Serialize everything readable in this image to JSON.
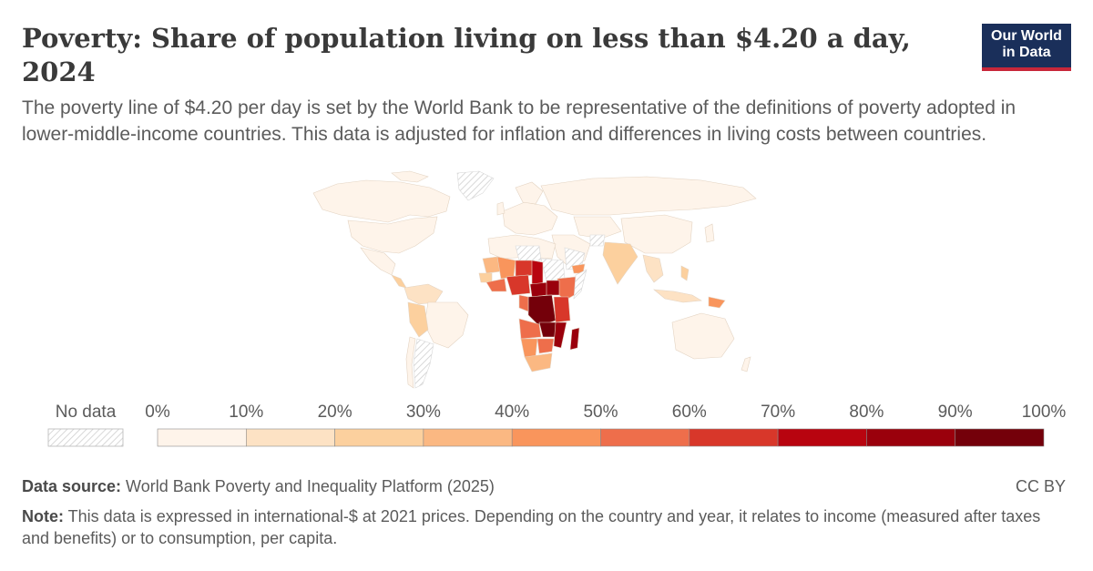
{
  "header": {
    "title": "Poverty: Share of population living on less than $4.20 a day, 2024",
    "subtitle": "The poverty line of $4.20 per day is set by the World Bank to be representative of the definitions of poverty adopted in lower-middle-income countries. This data is adjusted for inflation and differences in living costs between countries.",
    "logo_line1": "Our World",
    "logo_line2": "in Data"
  },
  "legend": {
    "no_data_label": "No data",
    "bins": [
      {
        "from": "0%",
        "color": "#fef4ea"
      },
      {
        "from": "10%",
        "color": "#fde2c4"
      },
      {
        "from": "20%",
        "color": "#fcd09e"
      },
      {
        "from": "30%",
        "color": "#fbb882"
      },
      {
        "from": "40%",
        "color": "#f9955c"
      },
      {
        "from": "50%",
        "color": "#ee6e4b"
      },
      {
        "from": "60%",
        "color": "#d8372a"
      },
      {
        "from": "70%",
        "color": "#b8040f"
      },
      {
        "from": "80%",
        "color": "#9a000c"
      },
      {
        "from": "90%",
        "color": "#74000a"
      }
    ],
    "last_label": "100%"
  },
  "footer": {
    "source_label": "Data source:",
    "source_text": " World Bank Poverty and Inequality Platform (2025)",
    "note_label": "Note:",
    "note_text": " This data is expressed in international-$ at 2021 prices. Depending on the country and year, it relates to income (measured after taxes and benefits) or to consumption, per capita.",
    "license": "CC BY"
  },
  "colors": {
    "nodata_hatch": "#d0d0d0",
    "country_border": "#ffffff",
    "low": "#fdecd8"
  }
}
